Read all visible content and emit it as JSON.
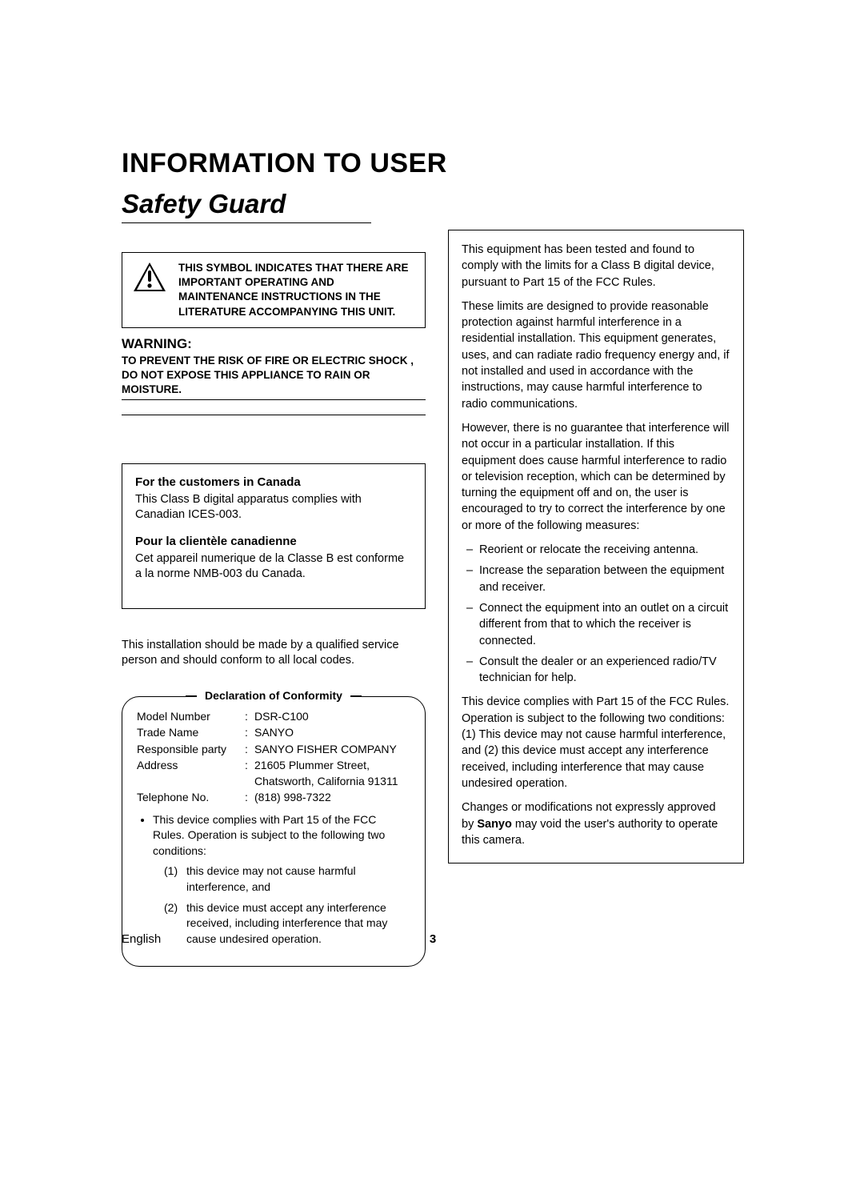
{
  "page": {
    "main_title": "INFORMATION TO USER",
    "safety_heading": "Safety Guard",
    "footer_language": "English",
    "page_number": "3"
  },
  "symbol_box": {
    "text": "THIS SYMBOL INDICATES THAT THERE ARE IMPORTANT OPERATING AND MAINTENANCE INSTRUCTIONS IN THE LITERATURE ACCOMPANYING THIS UNIT."
  },
  "warning": {
    "title": "WARNING:",
    "body": "TO PREVENT THE RISK OF FIRE OR ELECTRIC SHOCK , DO NOT EXPOSE THIS APPLIANCE TO RAIN OR MOISTURE."
  },
  "canada": {
    "heading_en": "For the customers in Canada",
    "body_en": "This Class B digital apparatus complies with Canadian ICES-003.",
    "heading_fr": "Pour la clientèle canadienne",
    "body_fr": "Cet appareil numerique de la Classe B est conforme a la norme NMB-003 du Canada."
  },
  "install_note": "This installation should be made by a qualified service person and should conform to all local codes.",
  "doc": {
    "legend": "Declaration of Conformity",
    "rows": [
      {
        "label": "Model Number",
        "value": "DSR-C100"
      },
      {
        "label": "Trade Name",
        "value": "SANYO"
      },
      {
        "label": "Responsible party",
        "value": "SANYO FISHER COMPANY"
      },
      {
        "label": "Address",
        "value": "21605 Plummer Street, Chatsworth, California 91311"
      },
      {
        "label": "Telephone No.",
        "value": "(818) 998-7322"
      }
    ],
    "bullet": "This device complies with Part 15 of the FCC Rules. Operation is subject to the following two conditions:",
    "conditions": [
      {
        "num": "(1)",
        "text": "this device may not cause harmful interference, and"
      },
      {
        "num": "(2)",
        "text": "this device must accept any interference received, including interference that may cause undesired operation."
      }
    ]
  },
  "fcc": {
    "p1": "This equipment has been tested and found to comply with the limits for a Class B digital device, pursuant to Part 15 of the FCC Rules.",
    "p2": "These limits are designed to provide reasonable protection against harmful interference in a residential installation. This equipment generates, uses, and can radiate radio frequency energy and, if not installed and used in accordance with the instructions, may cause harmful interference to radio communications.",
    "p3": "However, there is no guarantee that interference will not occur in a particular installation. If this equipment does cause harmful interference to radio or television reception, which can be determined by turning the equipment off and on, the user is encouraged to try to correct the interference by one or more of the following measures:",
    "list": [
      "Reorient or relocate the receiving antenna.",
      "Increase the separation between the equipment and receiver.",
      "Connect the equipment into an outlet on a circuit different from that to which the receiver is connected.",
      "Consult the dealer or an experienced radio/TV technician for help."
    ],
    "p4": "This device complies with Part 15 of the FCC Rules. Operation is subject to the following two conditions: (1) This device may not cause harmful interference, and (2) this device must accept any interference received, including interference that may cause undesired operation.",
    "p5_pre": "Changes or modifications not expressly approved by ",
    "p5_bold": "Sanyo",
    "p5_post": " may void the user's authority to operate this camera."
  },
  "colors": {
    "text": "#000000",
    "border": "#000000",
    "background": "#ffffff"
  }
}
